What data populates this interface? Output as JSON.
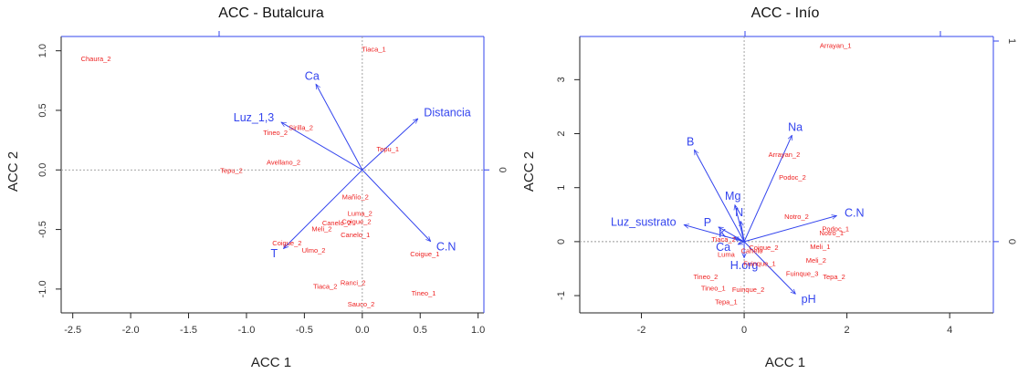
{
  "colors": {
    "sites": "#ee2222",
    "vectors": "#3344ee",
    "frame": "#222222",
    "refline": "#999999"
  },
  "chart_data": [
    {
      "type": "scatter",
      "title": "ACC - Butalcura",
      "xlabel": "ACC  1",
      "ylabel": "ACC  2",
      "xlim": [
        -2.6,
        1.05
      ],
      "ylim": [
        -1.2,
        1.12
      ],
      "xticks": [
        -2.5,
        -2.0,
        -1.5,
        -1.0,
        -0.5,
        0.0,
        0.5,
        1.0
      ],
      "xtick_labels": [
        "-2.5",
        "-2.0",
        "-1.5",
        "-1.0",
        "-0.5",
        "0.0",
        "0.5",
        "1.0"
      ],
      "yticks": [
        1.0,
        0.5,
        0.0,
        -0.5,
        -1.0
      ],
      "ytick_labels": [
        "1.0",
        "0.5",
        "0.0",
        "-0.5",
        "-1.0"
      ],
      "secondary_axis_labels": {
        "right_zero": "0"
      },
      "sites": [
        {
          "label": "Chaura_2",
          "x": -2.3,
          "y": 0.93
        },
        {
          "label": "Tiaca_1",
          "x": 0.1,
          "y": 1.01
        },
        {
          "label": "Sirilla_2",
          "x": -0.53,
          "y": 0.35
        },
        {
          "label": "Tineo_2",
          "x": -0.75,
          "y": 0.31
        },
        {
          "label": "Tepu_1",
          "x": 0.22,
          "y": 0.17
        },
        {
          "label": "Avellano_2",
          "x": -0.68,
          "y": 0.06
        },
        {
          "label": "Tepu_2",
          "x": -1.13,
          "y": -0.01
        },
        {
          "label": "Mañío_2",
          "x": -0.06,
          "y": -0.23
        },
        {
          "label": "Luma_2",
          "x": -0.02,
          "y": -0.37
        },
        {
          "label": "Canelo_2",
          "x": -0.22,
          "y": -0.45
        },
        {
          "label": "Coigue_2",
          "x": -0.05,
          "y": -0.44
        },
        {
          "label": "Meli_2",
          "x": -0.35,
          "y": -0.5
        },
        {
          "label": "Canelo_1",
          "x": -0.06,
          "y": -0.55
        },
        {
          "label": "Coigue_2",
          "x": -0.65,
          "y": -0.62
        },
        {
          "label": "Ulmo_2",
          "x": -0.42,
          "y": -0.68
        },
        {
          "label": "Coigue_1",
          "x": 0.54,
          "y": -0.71
        },
        {
          "label": "Ranci_2",
          "x": -0.08,
          "y": -0.95
        },
        {
          "label": "Tiaca_2",
          "x": -0.32,
          "y": -0.98
        },
        {
          "label": "Tineo_1",
          "x": 0.53,
          "y": -1.04
        },
        {
          "label": "Sauco_2",
          "x": -0.01,
          "y": -1.13
        }
      ],
      "vectors": [
        {
          "label": "Ca",
          "x": -0.4,
          "y": 0.72
        },
        {
          "label": "Luz_1,3",
          "x": -0.7,
          "y": 0.4
        },
        {
          "label": "Distancia",
          "x": 0.48,
          "y": 0.43
        },
        {
          "label": "C.N",
          "x": 0.59,
          "y": -0.6
        },
        {
          "label": "T",
          "x": -0.68,
          "y": -0.66
        }
      ]
    },
    {
      "type": "scatter",
      "title": "ACC - Inío",
      "xlabel": "ACC  1",
      "ylabel": "ACC  2",
      "xlim": [
        -3.2,
        4.85
      ],
      "ylim": [
        -1.32,
        3.8
      ],
      "xticks": [
        -2,
        0,
        2,
        4
      ],
      "xtick_labels": [
        "-2",
        "0",
        "2",
        "4"
      ],
      "yticks": [
        3,
        2,
        1,
        0,
        -1
      ],
      "ytick_labels": [
        "3",
        "2",
        "1",
        "0",
        "-1"
      ],
      "secondary_axis_labels": {
        "right_zero": "0",
        "right_top": "1"
      },
      "sites": [
        {
          "label": "Arrayan_1",
          "x": 1.78,
          "y": 3.62
        },
        {
          "label": "Arrayan_2",
          "x": 0.78,
          "y": 1.6
        },
        {
          "label": "Podoc_2",
          "x": 0.94,
          "y": 1.18
        },
        {
          "label": "Notro_2",
          "x": 1.02,
          "y": 0.45
        },
        {
          "label": "Podoc_1",
          "x": 1.78,
          "y": 0.23
        },
        {
          "label": "Notro_1",
          "x": 1.7,
          "y": 0.15
        },
        {
          "label": "Meli_1",
          "x": 1.48,
          "y": -0.1
        },
        {
          "label": "Coigue_2",
          "x": 0.38,
          "y": -0.12
        },
        {
          "label": "Meli_2",
          "x": 1.4,
          "y": -0.36
        },
        {
          "label": "Fuinque_3",
          "x": 1.13,
          "y": -0.6
        },
        {
          "label": "Tepa_2",
          "x": 1.75,
          "y": -0.66
        },
        {
          "label": "Tineo_2",
          "x": -0.75,
          "y": -0.66
        },
        {
          "label": "Tineo_1",
          "x": -0.6,
          "y": -0.87
        },
        {
          "label": "Fuinque_2",
          "x": 0.08,
          "y": -0.9
        },
        {
          "label": "Tepa_1",
          "x": -0.35,
          "y": -1.13
        },
        {
          "label": "Fuinque_1",
          "x": 0.3,
          "y": -0.42
        },
        {
          "label": "Tiaca_2",
          "x": -0.4,
          "y": 0.03
        },
        {
          "label": "Luma",
          "x": -0.35,
          "y": -0.25
        },
        {
          "label": "Canelo",
          "x": 0.15,
          "y": -0.18
        }
      ],
      "vectors": [
        {
          "label": "Na",
          "x": 0.93,
          "y": 1.97
        },
        {
          "label": "B",
          "x": -0.97,
          "y": 1.7
        },
        {
          "label": "Mg",
          "x": -0.18,
          "y": 0.68
        },
        {
          "label": "N",
          "x": -0.07,
          "y": 0.38
        },
        {
          "label": "P",
          "x": -0.5,
          "y": 0.27
        },
        {
          "label": "Luz_sustrato",
          "x": -1.17,
          "y": 0.31
        },
        {
          "label": "C.N",
          "x": 1.8,
          "y": 0.48
        },
        {
          "label": "K",
          "x": -0.2,
          "y": 0.08
        },
        {
          "label": "Ca",
          "x": -0.12,
          "y": -0.05
        },
        {
          "label": "H.org",
          "x": 0.0,
          "y": -0.3
        },
        {
          "label": "pH",
          "x": 1.0,
          "y": -0.97
        }
      ]
    }
  ]
}
